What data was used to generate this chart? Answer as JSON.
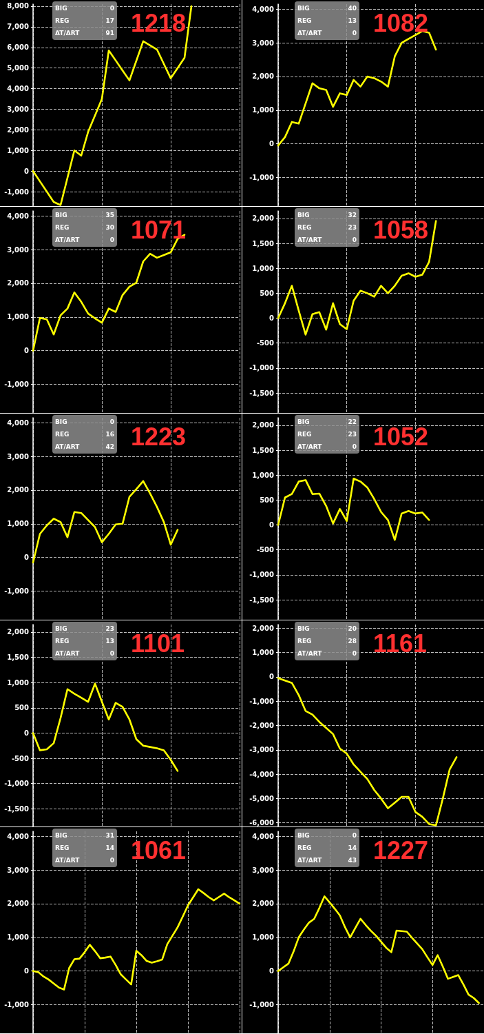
{
  "chart_data": [
    {
      "type": "line",
      "color": "#ffff00",
      "marker": "none",
      "line_style": "solid",
      "grid": true,
      "tick_labels": "y",
      "annotations": [
        "BIG",
        "0",
        "REG",
        "17",
        "AT/ART",
        "91",
        "1218"
      ],
      "categories": [
        null,
        null,
        null,
        null,
        null,
        null,
        null,
        null,
        null,
        null,
        null,
        null,
        null,
        null,
        null,
        null,
        null,
        null,
        null,
        null,
        null,
        null,
        null,
        null,
        null,
        null,
        null,
        null,
        null,
        null,
        null
      ],
      "ylim": [
        -1700,
        8100
      ],
      "yticks": [
        {
          "value": -1000,
          "label": "-1,000"
        },
        0,
        {
          "value": 1000,
          "label": "1,000"
        },
        {
          "value": 2000,
          "label": "2,000"
        },
        {
          "value": 3000,
          "label": "3,000"
        },
        {
          "value": 4000,
          "label": "4,000"
        },
        {
          "value": 5000,
          "label": "5,000"
        },
        {
          "value": 6000,
          "label": "6,000"
        },
        {
          "value": 7000,
          "label": "7,000"
        },
        {
          "value": 8000,
          "label": "8,000"
        }
      ],
      "values": [
        0,
        -500,
        -1000,
        -1500,
        -1650,
        -330,
        1000,
        750,
        1900,
        2700,
        3500,
        5850,
        5370,
        4880,
        4400,
        5350,
        6300,
        6100,
        5900,
        5200,
        4500,
        5000,
        5500,
        8000,
        null,
        null,
        null,
        null,
        null,
        null,
        null
      ]
    },
    {
      "type": "line",
      "color": "#ffff00",
      "marker": "none",
      "line_style": "solid",
      "grid": true,
      "tick_labels": "y",
      "annotations": [
        "BIG",
        "40",
        "REG",
        "13",
        "AT/ART",
        "0",
        "1082"
      ],
      "categories": [
        null,
        null,
        null,
        null,
        null,
        null,
        null,
        null,
        null,
        null,
        null,
        null,
        null,
        null,
        null,
        null,
        null,
        null,
        null,
        null,
        null,
        null,
        null,
        null,
        null,
        null,
        null,
        null,
        null,
        null,
        null
      ],
      "ylim": [
        -1850,
        4150
      ],
      "yticks": [
        {
          "value": -1000,
          "label": "-1,000"
        },
        0,
        {
          "value": 1000,
          "label": "1,000"
        },
        {
          "value": 2000,
          "label": "2,000"
        },
        {
          "value": 3000,
          "label": "3,000"
        },
        {
          "value": 4000,
          "label": "4,000"
        }
      ],
      "values": [
        -50,
        200,
        650,
        600,
        1200,
        1800,
        1650,
        1600,
        1100,
        1500,
        1450,
        1900,
        1700,
        2000,
        1950,
        1850,
        1700,
        2600,
        3000,
        3120,
        3230,
        3350,
        3300,
        2800,
        null,
        null,
        null,
        null,
        null,
        null,
        null
      ]
    },
    {
      "type": "line",
      "color": "#ffff00",
      "marker": "none",
      "line_style": "solid",
      "grid": true,
      "tick_labels": "y",
      "annotations": [
        "BIG",
        "35",
        "REG",
        "30",
        "AT/ART",
        "0",
        "1071"
      ],
      "categories": [
        null,
        null,
        null,
        null,
        null,
        null,
        null,
        null,
        null,
        null,
        null,
        null,
        null,
        null,
        null,
        null,
        null,
        null,
        null,
        null,
        null,
        null,
        null,
        null,
        null,
        null,
        null,
        null,
        null,
        null,
        null
      ],
      "ylim": [
        -1850,
        4150
      ],
      "yticks": [
        {
          "value": -1000,
          "label": "-1,000"
        },
        0,
        {
          "value": 1000,
          "label": "1,000"
        },
        {
          "value": 2000,
          "label": "2,000"
        },
        {
          "value": 3000,
          "label": "3,000"
        },
        {
          "value": 4000,
          "label": "4,000"
        }
      ],
      "values": [
        0,
        970,
        930,
        480,
        1050,
        1250,
        1730,
        1450,
        1100,
        960,
        830,
        1250,
        1150,
        1650,
        1900,
        2020,
        2650,
        2880,
        2760,
        2840,
        2920,
        3320,
        3440,
        null,
        null,
        null,
        null,
        null,
        null,
        null,
        null
      ]
    },
    {
      "type": "line",
      "color": "#ffff00",
      "marker": "none",
      "line_style": "solid",
      "grid": true,
      "tick_labels": "y",
      "annotations": [
        "BIG",
        "32",
        "REG",
        "23",
        "AT/ART",
        "0",
        "1058"
      ],
      "categories": [
        null,
        null,
        null,
        null,
        null,
        null,
        null,
        null,
        null,
        null,
        null,
        null,
        null,
        null,
        null,
        null,
        null,
        null,
        null,
        null,
        null,
        null,
        null,
        null,
        null,
        null,
        null,
        null,
        null,
        null,
        null
      ],
      "ylim": [
        -1900,
        2150
      ],
      "yticks": [
        {
          "value": -1500,
          "label": "-1,500"
        },
        {
          "value": -1000,
          "label": "-1,000"
        },
        -500,
        0,
        500,
        {
          "value": 1000,
          "label": "1,000"
        },
        {
          "value": 1500,
          "label": "1,500"
        },
        {
          "value": 2000,
          "label": "2,000"
        }
      ],
      "values": [
        0,
        300,
        650,
        150,
        -330,
        80,
        120,
        -230,
        300,
        -120,
        -220,
        350,
        550,
        500,
        430,
        650,
        500,
        650,
        850,
        900,
        830,
        870,
        1130,
        1950,
        null,
        null,
        null,
        null,
        null,
        null,
        null
      ]
    },
    {
      "type": "line",
      "color": "#ffff00",
      "marker": "none",
      "line_style": "solid",
      "grid": true,
      "tick_labels": "y",
      "annotations": [
        "BIG",
        "0",
        "REG",
        "16",
        "AT/ART",
        "42",
        "1223"
      ],
      "categories": [
        null,
        null,
        null,
        null,
        null,
        null,
        null,
        null,
        null,
        null,
        null,
        null,
        null,
        null,
        null,
        null,
        null,
        null,
        null,
        null,
        null,
        null,
        null,
        null,
        null,
        null,
        null,
        null,
        null,
        null,
        null
      ],
      "ylim": [
        -1850,
        4150
      ],
      "yticks": [
        {
          "value": -1000,
          "label": "-1,000"
        },
        0,
        {
          "value": 1000,
          "label": "1,000"
        },
        {
          "value": 2000,
          "label": "2,000"
        },
        {
          "value": 3000,
          "label": "3,000"
        },
        {
          "value": 4000,
          "label": "4,000"
        }
      ],
      "values": [
        -150,
        700,
        950,
        1150,
        1050,
        600,
        1350,
        1320,
        1110,
        900,
        450,
        700,
        980,
        1000,
        1800,
        2030,
        2270,
        1900,
        1500,
        1050,
        380,
        820,
        null,
        null,
        null,
        null,
        null,
        null,
        null,
        null,
        null
      ]
    },
    {
      "type": "line",
      "color": "#ffff00",
      "marker": "none",
      "line_style": "solid",
      "grid": true,
      "tick_labels": "y",
      "annotations": [
        "BIG",
        "22",
        "REG",
        "23",
        "AT/ART",
        "0",
        "1052"
      ],
      "categories": [
        null,
        null,
        null,
        null,
        null,
        null,
        null,
        null,
        null,
        null,
        null,
        null,
        null,
        null,
        null,
        null,
        null,
        null,
        null,
        null,
        null,
        null,
        null,
        null,
        null,
        null,
        null,
        null,
        null,
        null,
        null
      ],
      "ylim": [
        -1900,
        2150
      ],
      "yticks": [
        {
          "value": -1500,
          "label": "-1,500"
        },
        {
          "value": -1000,
          "label": "-1,000"
        },
        -500,
        0,
        500,
        {
          "value": 1000,
          "label": "1,000"
        },
        {
          "value": 1500,
          "label": "1,500"
        },
        {
          "value": 2000,
          "label": "2,000"
        }
      ],
      "values": [
        0,
        550,
        620,
        870,
        900,
        620,
        630,
        380,
        30,
        320,
        80,
        930,
        870,
        750,
        520,
        260,
        100,
        -300,
        230,
        280,
        230,
        250,
        100,
        null,
        null,
        null,
        null,
        null,
        null,
        null,
        null
      ]
    },
    {
      "type": "line",
      "color": "#ffff00",
      "marker": "none",
      "line_style": "solid",
      "grid": true,
      "tick_labels": "y",
      "annotations": [
        "BIG",
        "23",
        "REG",
        "13",
        "AT/ART",
        "0",
        "1101"
      ],
      "categories": [
        null,
        null,
        null,
        null,
        null,
        null,
        null,
        null,
        null,
        null,
        null,
        null,
        null,
        null,
        null,
        null,
        null,
        null,
        null,
        null,
        null,
        null,
        null,
        null,
        null,
        null,
        null,
        null,
        null,
        null,
        null
      ],
      "ylim": [
        -1850,
        2150
      ],
      "yticks": [
        {
          "value": -1500,
          "label": "-1,500"
        },
        {
          "value": -1000,
          "label": "-1,000"
        },
        -500,
        0,
        500,
        {
          "value": 1000,
          "label": "1,000"
        },
        {
          "value": 1500,
          "label": "1,500"
        },
        {
          "value": 2000,
          "label": "2,000"
        }
      ],
      "values": [
        0,
        -340,
        -320,
        -200,
        300,
        870,
        780,
        700,
        620,
        980,
        620,
        270,
        600,
        520,
        270,
        -120,
        -250,
        -275,
        -300,
        -340,
        -530,
        -750,
        null,
        null,
        null,
        null,
        null,
        null,
        null,
        null,
        null
      ]
    },
    {
      "type": "line",
      "color": "#ffff00",
      "marker": "none",
      "line_style": "solid",
      "grid": true,
      "tick_labels": "y",
      "annotations": [
        "BIG",
        "20",
        "REG",
        "28",
        "AT/ART",
        "0",
        "1161"
      ],
      "categories": [
        null,
        null,
        null,
        null,
        null,
        null,
        null,
        null,
        null,
        null,
        null,
        null,
        null,
        null,
        null,
        null,
        null,
        null,
        null,
        null,
        null,
        null,
        null,
        null,
        null,
        null,
        null,
        null,
        null,
        null,
        null
      ],
      "ylim": [
        -6150,
        2150
      ],
      "yticks": [
        {
          "value": -6000,
          "label": "-6,000"
        },
        {
          "value": -5000,
          "label": "-5,000"
        },
        {
          "value": -4000,
          "label": "-4,000"
        },
        {
          "value": -3000,
          "label": "-3,000"
        },
        {
          "value": -2000,
          "label": "-2,000"
        },
        {
          "value": -1000,
          "label": "-1,000"
        },
        0,
        {
          "value": 1000,
          "label": "1,000"
        },
        {
          "value": 2000,
          "label": "2,000"
        }
      ],
      "values": [
        -50,
        -150,
        -250,
        -750,
        -1400,
        -1550,
        -1850,
        -2100,
        -2350,
        -2950,
        -3150,
        -3600,
        -3900,
        -4200,
        -4650,
        -5000,
        -5400,
        -5170,
        -4930,
        -4930,
        -5550,
        -5750,
        -6050,
        -6100,
        -5000,
        -3800,
        -3300,
        null,
        null,
        null,
        null
      ]
    },
    {
      "type": "line",
      "color": "#ffff00",
      "marker": "none",
      "line_style": "solid",
      "grid": true,
      "tick_labels": "y",
      "annotations": [
        "BIG",
        "31",
        "REG",
        "14",
        "AT/ART",
        "0",
        "1061"
      ],
      "categories": [
        null,
        null,
        null,
        null,
        null,
        null,
        null,
        null,
        null,
        null,
        null,
        null,
        null,
        null,
        null,
        null,
        null,
        null,
        null,
        null,
        null,
        null,
        null,
        null,
        null,
        null,
        null,
        null,
        null,
        null,
        null,
        null,
        null,
        null,
        null,
        null,
        null,
        null,
        null,
        null,
        null
      ],
      "ylim": [
        -1850,
        4150
      ],
      "yticks": [
        {
          "value": -1000,
          "label": "-1,000"
        },
        0,
        {
          "value": 1000,
          "label": "1,000"
        },
        {
          "value": 2000,
          "label": "2,000"
        },
        {
          "value": 3000,
          "label": "3,000"
        },
        {
          "value": 4000,
          "label": "4,000"
        }
      ],
      "values": [
        0,
        -30,
        -160,
        -250,
        -370,
        -490,
        -550,
        90,
        350,
        370,
        560,
        780,
        590,
        380,
        400,
        430,
        180,
        -100,
        -250,
        -400,
        600,
        470,
        300,
        250,
        290,
        340,
        800,
        1050,
        1300,
        1620,
        1950,
        2190,
        2430,
        2320,
        2200,
        2100,
        2200,
        2300,
        2190,
        2100,
        2000
      ]
    },
    {
      "type": "line",
      "color": "#ffff00",
      "marker": "none",
      "line_style": "solid",
      "grid": true,
      "tick_labels": "y",
      "annotations": [
        "BIG",
        "0",
        "REG",
        "14",
        "AT/ART",
        "43",
        "1227"
      ],
      "categories": [
        null,
        null,
        null,
        null,
        null,
        null,
        null,
        null,
        null,
        null,
        null,
        null,
        null,
        null,
        null,
        null,
        null,
        null,
        null,
        null,
        null,
        null,
        null,
        null,
        null,
        null,
        null,
        null,
        null,
        null,
        null,
        null,
        null,
        null,
        null,
        null,
        null,
        null,
        null,
        null,
        null
      ],
      "ylim": [
        -1850,
        4150
      ],
      "yticks": [
        {
          "value": -1000,
          "label": "-1,000"
        },
        0,
        {
          "value": 1000,
          "label": "1,000"
        },
        {
          "value": 2000,
          "label": "2,000"
        },
        {
          "value": 3000,
          "label": "3,000"
        },
        {
          "value": 4000,
          "label": "4,000"
        }
      ],
      "values": [
        0,
        110,
        220,
        580,
        1000,
        1230,
        1440,
        1550,
        1870,
        2220,
        2040,
        1850,
        1650,
        1300,
        1000,
        1280,
        1550,
        1370,
        1200,
        1050,
        870,
        690,
        560,
        1200,
        1185,
        1170,
        990,
        820,
        650,
        410,
        180,
        470,
        130,
        -230,
        -175,
        -120,
        -400,
        -700,
        -800,
        -950,
        null
      ]
    }
  ]
}
